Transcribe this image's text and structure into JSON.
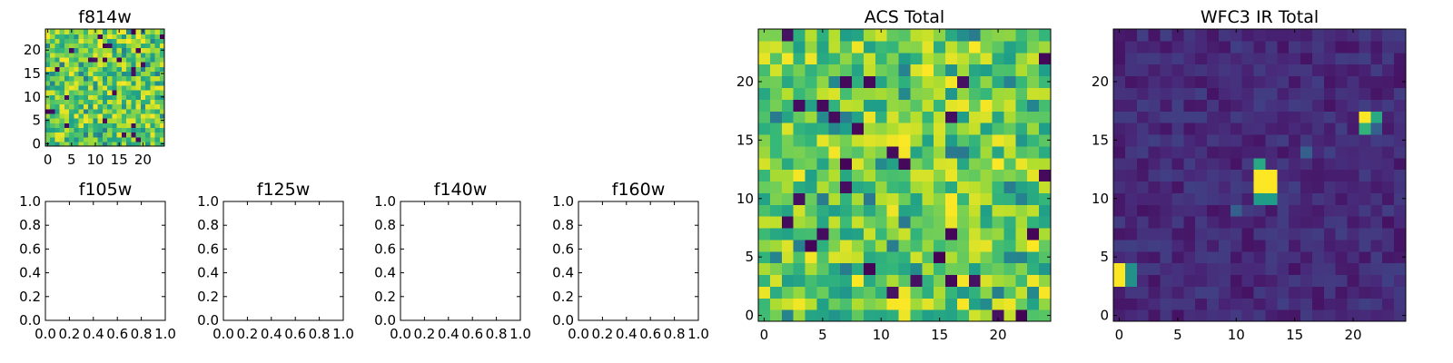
{
  "chart_data": [
    {
      "type": "heatmap",
      "title": "f814w",
      "xlabel": "",
      "ylabel": "",
      "grid_size": 25,
      "xlim": [
        -0.5,
        24.5
      ],
      "ylim": [
        -0.5,
        24.5
      ],
      "x_ticks": [
        0,
        5,
        10,
        15,
        20
      ],
      "y_ticks": [
        0,
        5,
        10,
        15,
        20
      ],
      "colormap": "viridis",
      "pattern": "noise",
      "grid": false
    },
    {
      "type": "line",
      "title": "f105w",
      "xlim": [
        0.0,
        1.0
      ],
      "ylim": [
        0.0,
        1.0
      ],
      "x_ticks": [
        "0.0",
        "0.2",
        "0.4",
        "0.6",
        "0.8",
        "1.0"
      ],
      "y_ticks": [
        "0.0",
        "0.2",
        "0.4",
        "0.6",
        "0.8",
        "1.0"
      ],
      "series": [],
      "grid": false
    },
    {
      "type": "line",
      "title": "f125w",
      "xlim": [
        0.0,
        1.0
      ],
      "ylim": [
        0.0,
        1.0
      ],
      "x_ticks": [
        "0.0",
        "0.2",
        "0.4",
        "0.6",
        "0.8",
        "1.0"
      ],
      "y_ticks": [
        "0.0",
        "0.2",
        "0.4",
        "0.6",
        "0.8",
        "1.0"
      ],
      "series": [],
      "grid": false
    },
    {
      "type": "line",
      "title": "f140w",
      "xlim": [
        0.0,
        1.0
      ],
      "ylim": [
        0.0,
        1.0
      ],
      "x_ticks": [
        "0.0",
        "0.2",
        "0.4",
        "0.6",
        "0.8",
        "1.0"
      ],
      "y_ticks": [
        "0.0",
        "0.2",
        "0.4",
        "0.6",
        "0.8",
        "1.0"
      ],
      "series": [],
      "grid": false
    },
    {
      "type": "line",
      "title": "f160w",
      "xlim": [
        0.0,
        1.0
      ],
      "ylim": [
        0.0,
        1.0
      ],
      "x_ticks": [
        "0.0",
        "0.2",
        "0.4",
        "0.6",
        "0.8",
        "1.0"
      ],
      "y_ticks": [
        "0.0",
        "0.2",
        "0.4",
        "0.6",
        "0.8",
        "1.0"
      ],
      "series": [],
      "grid": false
    },
    {
      "type": "heatmap",
      "title": "ACS Total",
      "xlabel": "",
      "ylabel": "",
      "grid_size": 25,
      "xlim": [
        -0.5,
        24.5
      ],
      "ylim": [
        -0.5,
        24.5
      ],
      "x_ticks": [
        0,
        5,
        10,
        15,
        20
      ],
      "y_ticks": [
        0,
        5,
        10,
        15,
        20
      ],
      "colormap": "viridis",
      "pattern": "noise",
      "grid": false
    },
    {
      "type": "heatmap",
      "title": "WFC3 IR Total",
      "xlabel": "",
      "ylabel": "",
      "grid_size": 25,
      "xlim": [
        -0.5,
        24.5
      ],
      "ylim": [
        -0.5,
        24.5
      ],
      "x_ticks": [
        0,
        5,
        10,
        15,
        20
      ],
      "y_ticks": [
        0,
        5,
        10,
        15,
        20
      ],
      "colormap": "viridis",
      "pattern": "sources",
      "sources": [
        {
          "x": 12,
          "y": 12,
          "value": 1.0
        },
        {
          "x": 13,
          "y": 12,
          "value": 1.0
        },
        {
          "x": 12,
          "y": 11,
          "value": 1.0
        },
        {
          "x": 13,
          "y": 11,
          "value": 1.0
        },
        {
          "x": 12,
          "y": 13,
          "value": 0.6
        },
        {
          "x": 12,
          "y": 10,
          "value": 0.55
        },
        {
          "x": 13,
          "y": 10,
          "value": 0.55
        },
        {
          "x": 21,
          "y": 17,
          "value": 1.0
        },
        {
          "x": 22,
          "y": 17,
          "value": 0.6
        },
        {
          "x": 21,
          "y": 16,
          "value": 0.65
        },
        {
          "x": 22,
          "y": 16,
          "value": 0.3
        },
        {
          "x": 0,
          "y": 4,
          "value": 1.0
        },
        {
          "x": 0,
          "y": 3,
          "value": 1.0
        },
        {
          "x": 1,
          "y": 4,
          "value": 0.5
        },
        {
          "x": 1,
          "y": 3,
          "value": 0.5
        },
        {
          "x": 10,
          "y": 9,
          "value": 0.3
        },
        {
          "x": 16,
          "y": 14,
          "value": 0.3
        }
      ],
      "grid": false
    }
  ]
}
